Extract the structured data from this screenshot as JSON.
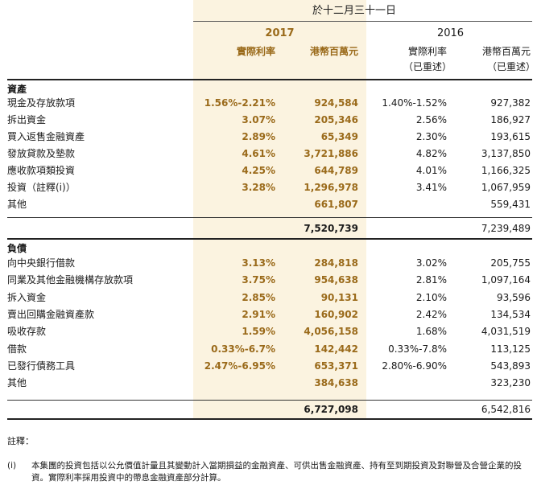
{
  "header": {
    "period": "於十二月三十一日",
    "year_2017": "2017",
    "year_2016": "2016",
    "col_rate_2017": "實際利率",
    "col_amt_2017": "港幣百萬元",
    "col_rate_2016": "實際利率",
    "col_rate_2016_sub": "（已重述）",
    "col_amt_2016": "港幣百萬元",
    "col_amt_2016_sub": "（已重述）"
  },
  "assets": {
    "title": "資產",
    "rows": [
      {
        "label": "現金及存放款項",
        "rate_2017": "1.56%-2.21%",
        "amt_2017": "924,584",
        "rate_2016": "1.40%-1.52%",
        "amt_2016": "927,382"
      },
      {
        "label": "拆出資金",
        "rate_2017": "3.07%",
        "amt_2017": "205,346",
        "rate_2016": "2.56%",
        "amt_2016": "186,927"
      },
      {
        "label": "買入返售金融資產",
        "rate_2017": "2.89%",
        "amt_2017": "65,349",
        "rate_2016": "2.30%",
        "amt_2016": "193,615"
      },
      {
        "label": "發放貸款及墊款",
        "rate_2017": "4.61%",
        "amt_2017": "3,721,886",
        "rate_2016": "4.82%",
        "amt_2016": "3,137,850"
      },
      {
        "label": "應收款項類投資",
        "rate_2017": "4.25%",
        "amt_2017": "644,789",
        "rate_2016": "4.01%",
        "amt_2016": "1,166,325"
      },
      {
        "label": "投資（註釋(i)）",
        "rate_2017": "3.28%",
        "amt_2017": "1,296,978",
        "rate_2016": "3.41%",
        "amt_2016": "1,067,959"
      },
      {
        "label": "其他",
        "rate_2017": "",
        "amt_2017": "661,807",
        "rate_2016": "",
        "amt_2016": "559,431"
      }
    ],
    "total_2017": "7,520,739",
    "total_2016": "7,239,489"
  },
  "liabilities": {
    "title": "負債",
    "rows": [
      {
        "label": "向中央銀行借款",
        "rate_2017": "3.13%",
        "amt_2017": "284,818",
        "rate_2016": "3.02%",
        "amt_2016": "205,755"
      },
      {
        "label": "同業及其他金融機構存放款項",
        "rate_2017": "3.75%",
        "amt_2017": "954,638",
        "rate_2016": "2.81%",
        "amt_2016": "1,097,164"
      },
      {
        "label": "拆入資金",
        "rate_2017": "2.85%",
        "amt_2017": "90,131",
        "rate_2016": "2.10%",
        "amt_2016": "93,596"
      },
      {
        "label": "賣出回購金融資產款",
        "rate_2017": "2.91%",
        "amt_2017": "160,902",
        "rate_2016": "2.42%",
        "amt_2016": "134,534"
      },
      {
        "label": "吸收存款",
        "rate_2017": "1.59%",
        "amt_2017": "4,056,158",
        "rate_2016": "1.68%",
        "amt_2016": "4,031,519"
      },
      {
        "label": "借款",
        "rate_2017": "0.33%-6.7%",
        "amt_2017": "142,442",
        "rate_2016": "0.33%-7.8%",
        "amt_2016": "113,125"
      },
      {
        "label": "已發行債務工具",
        "rate_2017": "2.47%-6.95%",
        "amt_2017": "653,371",
        "rate_2016": "2.80%-6.90%",
        "amt_2016": "543,893"
      },
      {
        "label": "其他",
        "rate_2017": "",
        "amt_2017": "384,638",
        "rate_2016": "",
        "amt_2016": "323,230"
      }
    ],
    "total_2017": "6,727,098",
    "total_2016": "6,542,816"
  },
  "notes": {
    "title": "註釋：",
    "items": [
      {
        "mark": "(i)",
        "text": "本集團的投資包括以公允價值計量且其變動計入當期損益的金融資產、可供出售金融資產、持有至到期投資及對聯營及合營企業的投資。實際利率採用投資中的帶息金融資產部分計算。"
      }
    ]
  }
}
